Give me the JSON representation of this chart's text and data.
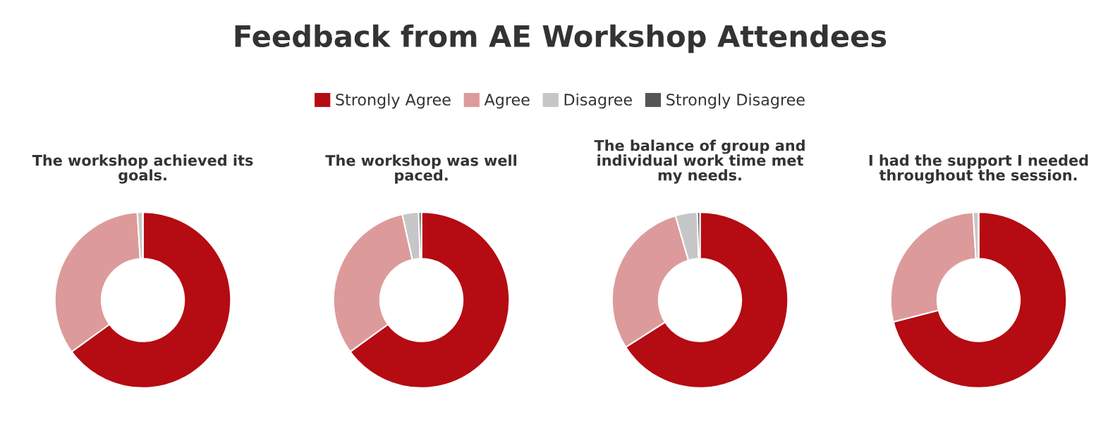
{
  "chart_data": [
    {
      "type": "donut",
      "title": "Feedback from AE Workshop Attendees",
      "subtitle": "The workshop achieved its\ngoals.",
      "legend": "top",
      "categories": [
        "Strongly Agree",
        "Agree",
        "Disagree",
        "Strongly Disagree"
      ],
      "values": [
        65,
        34,
        1,
        0
      ],
      "colors": [
        "#b50b12",
        "#dd9a9b",
        "#c6c6c6",
        "#555555"
      ]
    },
    {
      "type": "donut",
      "subtitle": "The workshop was well\npaced.",
      "categories": [
        null,
        null,
        null,
        null
      ],
      "values": [
        65,
        31.5,
        3,
        0.5
      ],
      "colors": [
        "#b50b12",
        "#dd9a9b",
        "#c6c6c6",
        "#555555"
      ]
    },
    {
      "type": "donut",
      "subtitle": "The balance of group and\nindividual work time met\nmy needs.",
      "categories": [
        null,
        null,
        null,
        null
      ],
      "values": [
        66,
        29.5,
        4,
        0.5
      ],
      "colors": [
        "#b50b12",
        "#dd9a9b",
        "#c6c6c6",
        "#555555"
      ]
    },
    {
      "type": "donut",
      "subtitle": "I had the support I needed\nthroughout the session.",
      "categories": [
        null,
        null,
        null,
        null
      ],
      "values": [
        71,
        28,
        1,
        0
      ],
      "colors": [
        "#b50b12",
        "#dd9a9b",
        "#c6c6c6",
        "#555555"
      ]
    }
  ]
}
